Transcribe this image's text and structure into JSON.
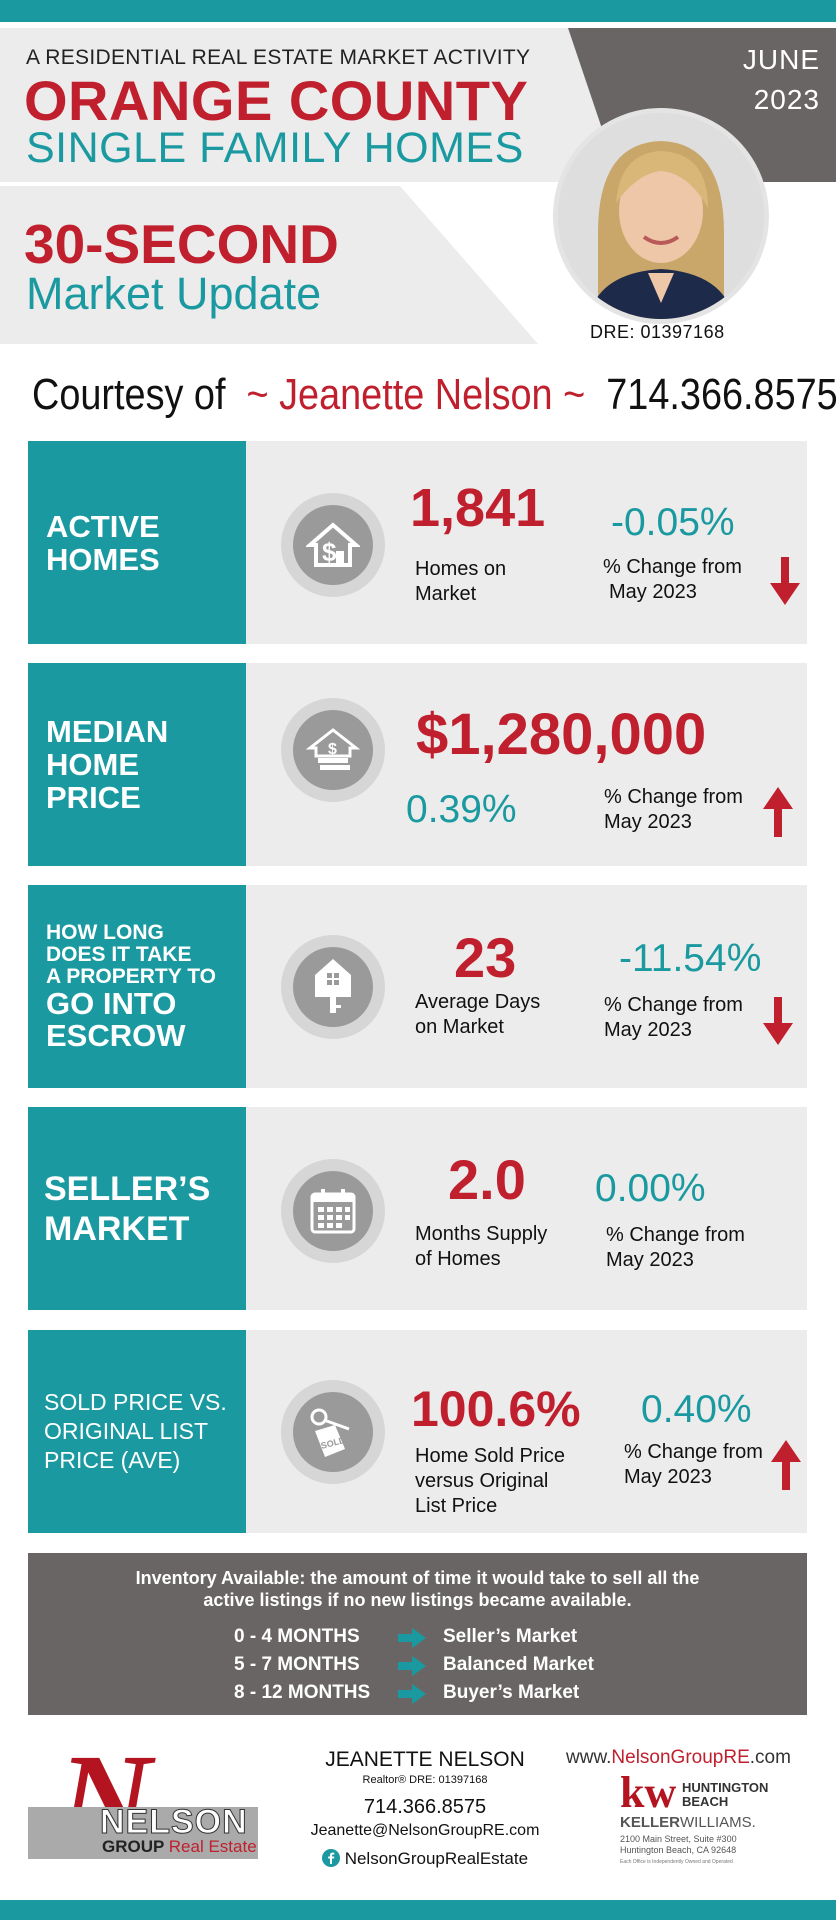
{
  "header": {
    "subtitle": "A RESIDENTIAL REAL ESTATE MARKET ACTIVITY",
    "title_line1": "ORANGE COUNTY",
    "title_line2": "SINGLE FAMILY HOMES",
    "update_line1": "30-SECOND",
    "update_line2": "Market Update",
    "month": "JUNE",
    "year": "2023",
    "dre": "DRE: 01397168"
  },
  "courtesy": {
    "prefix": "Courtesy of",
    "name": "~ Jeanette Nelson ~",
    "phone": "714.366.8575"
  },
  "stats": [
    {
      "label_lines": [
        "ACTIVE",
        "HOMES"
      ],
      "icon": "house-dollar-icon",
      "value": "1,841",
      "desc_lines": [
        "Homes on",
        "Market"
      ],
      "pct": "-0.05%",
      "chg_lines": [
        "%  Change  from",
        "May 2023"
      ],
      "direction": "down"
    },
    {
      "label_lines": [
        "MEDIAN",
        "HOME",
        "PRICE"
      ],
      "icon": "house-money-icon",
      "value": "$1,280,000",
      "pct": "0.39%",
      "chg_lines": [
        "%  Change  from",
        "May 2023"
      ],
      "direction": "up"
    },
    {
      "label_lines": [
        "HOW LONG",
        "DOES IT TAKE",
        "A PROPERTY TO",
        "GO INTO",
        "ESCROW"
      ],
      "icon": "house-key-icon",
      "value": "23",
      "desc_lines": [
        "Average Days",
        "on Market"
      ],
      "pct": "-11.54%",
      "chg_lines": [
        "%  Change  from",
        "May 2023"
      ],
      "direction": "down"
    },
    {
      "label_lines": [
        "SELLER’S",
        "MARKET"
      ],
      "icon": "calendar-icon",
      "value": "2.0",
      "desc_lines": [
        "Months Supply",
        "of Homes"
      ],
      "pct": "0.00%",
      "chg_lines": [
        "%  Change  from",
        "May 2023"
      ],
      "direction": "none"
    },
    {
      "label_lines": [
        "SOLD PRICE VS.",
        "ORIGINAL LIST",
        "PRICE (AVE)"
      ],
      "icon": "sold-key-icon",
      "value": "100.6%",
      "desc_lines": [
        "Home Sold Price",
        "versus Original",
        "List Price"
      ],
      "pct": "0.40%",
      "chg_lines": [
        "%  Change  from",
        "May 2023"
      ],
      "direction": "up"
    }
  ],
  "inventory": {
    "definition_line1": "Inventory Available:  the amount of time it would take to sell all the",
    "definition_line2": "active listings if no new listings became available.",
    "rows": [
      {
        "range": "0 - 4 MONTHS",
        "market": "Seller’s Market"
      },
      {
        "range": "5 - 7 MONTHS",
        "market": "Balanced Market"
      },
      {
        "range": "8 - 12 MONTHS",
        "market": "Buyer’s Market"
      }
    ]
  },
  "footer": {
    "logo_letter": "N",
    "logo_name": "NELSON",
    "logo_group": "GROUP",
    "logo_re": "Real Estate",
    "contact_name": "JEANETTE NELSON",
    "contact_title": "Realtor®  DRE: 01397168",
    "contact_phone": "714.366.8575",
    "contact_email": "Jeanette@NelsonGroupRE.com",
    "contact_facebook": "NelsonGroupRealEstate",
    "web_prefix": "www.",
    "web_brand": "NelsonGroupRE",
    "web_suffix": ".com",
    "kw_mark": "kw",
    "kw_office_line1": "HUNTINGTON",
    "kw_office_line2": "BEACH",
    "kw_brand_a": "KELLER",
    "kw_brand_b": "WILLIAMS.",
    "kw_addr1": "2100 Main Street, Suite #300",
    "kw_addr2": "Huntington Beach, CA 92648",
    "kw_disclaimer": "Each Office is Independently Owned and Operated"
  },
  "colors": {
    "teal": "#1a9aa0",
    "red": "#c0202d",
    "gray_panel": "#6a6565",
    "light_panel": "#ececec"
  }
}
